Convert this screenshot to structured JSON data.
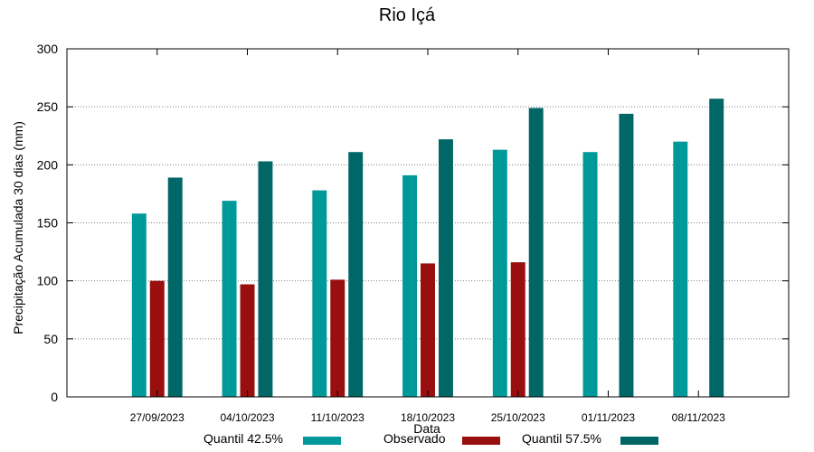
{
  "chart_data": {
    "type": "bar",
    "title": "Rio Içá",
    "xlabel": "Data",
    "ylabel": "Precipitação Acumulada 30 dias (mm)",
    "ylim": [
      0,
      300
    ],
    "yticks": [
      0,
      50,
      100,
      150,
      200,
      250,
      300
    ],
    "grid": true,
    "legend_position": "bottom",
    "categories": [
      "27/09/2023",
      "04/10/2023",
      "11/10/2023",
      "18/10/2023",
      "25/10/2023",
      "01/11/2023",
      "08/11/2023"
    ],
    "series": [
      {
        "name": "Quantil 42.5%",
        "color": "#009999",
        "values": [
          158,
          169,
          178,
          191,
          213,
          211,
          220
        ]
      },
      {
        "name": "Observado",
        "color": "#990f0f",
        "values": [
          100,
          97,
          101,
          115,
          116,
          null,
          null
        ]
      },
      {
        "name": "Quantil 57.5%",
        "color": "#006666",
        "values": [
          189,
          203,
          211,
          222,
          249,
          244,
          257
        ]
      }
    ]
  }
}
